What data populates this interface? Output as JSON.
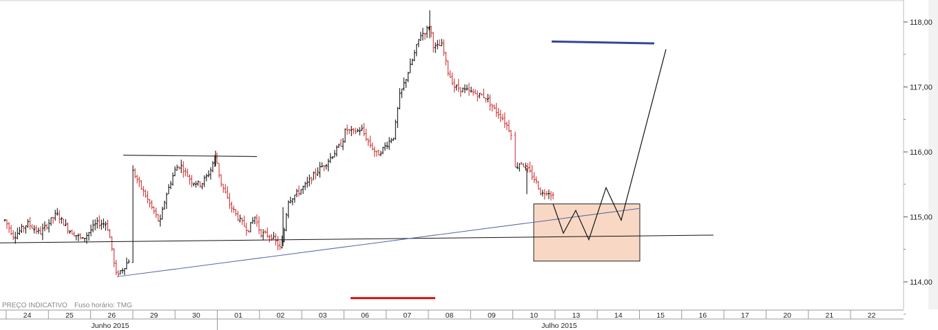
{
  "footer": {
    "price_type": "PREÇO INDICATIVO",
    "timezone": "Fuso horário: TMG"
  },
  "colors": {
    "up_bar": "#000000",
    "down_bar": "#cc2222",
    "trendline_blue": "#5566aa",
    "resistance_blue": "#334499",
    "support_red": "#dd1111",
    "box_fill": "#f8d8c4",
    "box_stroke": "#222222"
  },
  "chart_data": {
    "type": "ohlc",
    "y_axis": {
      "ticks": [
        "118,00",
        "117,00",
        "116,00",
        "115,00",
        "114,00"
      ],
      "tick_values": [
        118,
        117,
        116,
        115,
        114
      ],
      "ylim": [
        113.6,
        118.3
      ],
      "position": "right"
    },
    "x_axis": {
      "dates": [
        "24",
        "25",
        "26",
        "29",
        "30",
        "01",
        "02",
        "03",
        "06",
        "07",
        "08",
        "09",
        "10",
        "13",
        "14",
        "15",
        "16",
        "17",
        "20",
        "21",
        "22"
      ],
      "months": [
        "Junho 2015",
        "Julho 2015"
      ]
    },
    "annotations": {
      "neckline_top": 115.95,
      "horizontal_support_start": 114.6,
      "horizontal_support_end": 114.72,
      "rising_trendline_start": 114.08,
      "rising_trendline_end": 115.13,
      "target_line_blue": 117.68,
      "red_level": 113.75,
      "box_top": 115.2,
      "box_bottom": 114.32,
      "projection_path": [
        115.2,
        114.75,
        115.1,
        114.65,
        115.45,
        114.95,
        117.58
      ]
    }
  }
}
